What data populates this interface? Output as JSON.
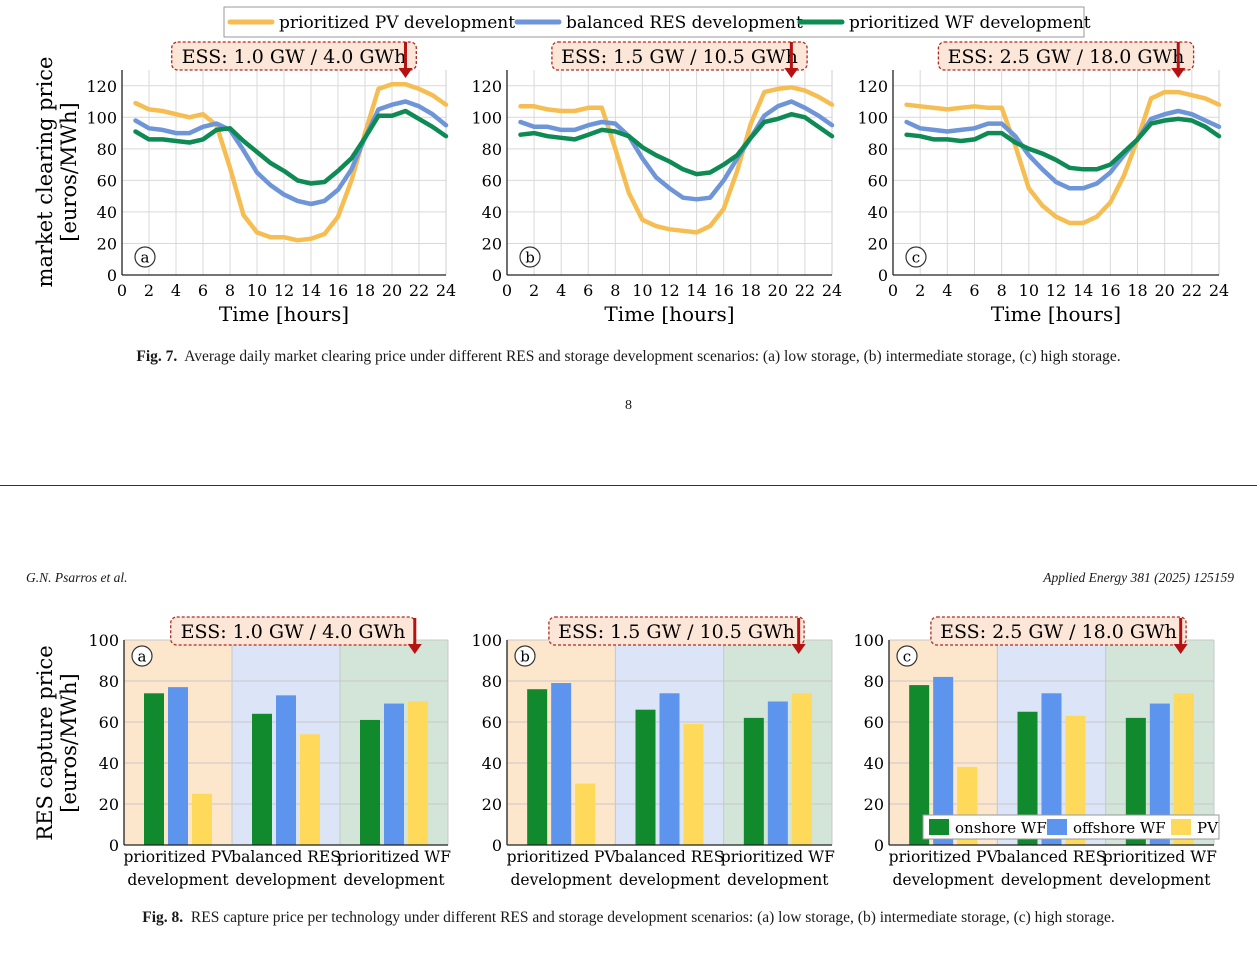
{
  "fig7": {
    "caption_label": "Fig. 7.",
    "caption_text": "Average daily market clearing price under different RES and storage development scenarios: (a) low storage, (b) intermediate storage, (c) high storage."
  },
  "page_number": "8",
  "running_header": {
    "authors": "G.N. Psarros et al.",
    "journal": "Applied Energy 381 (2025) 125159"
  },
  "fig8": {
    "caption_label": "Fig. 8.",
    "caption_text": "RES capture price per technology under different RES and storage development scenarios: (a) low storage, (b) intermediate storage, (c) high storage."
  },
  "colors": {
    "pv_line": "#F6BE52",
    "balanced_line": "#6D95D8",
    "wf_line": "#0E8A55",
    "onshore_bar": "#118A2E",
    "offshore_bar": "#5C94EE",
    "pv_bar": "#FFD95A",
    "bg_pv": "#FCE6CC",
    "bg_bal": "#DCE4F7",
    "bg_wf": "#D3E4D9",
    "ess_box": "#FCE6D8",
    "ess_border": "#B02A1E",
    "arrow": "#B51212"
  },
  "chart_data": [
    {
      "type": "line",
      "panel": "a",
      "ess_label": "ESS: 1.0 GW / 4.0 GWh",
      "xlabel": "Time [hours]",
      "ylabel": "market clearing price [euros/MWh]",
      "xlim": [
        0,
        24
      ],
      "ylim": [
        0,
        130
      ],
      "xticks": [
        0,
        2,
        4,
        6,
        8,
        10,
        12,
        14,
        16,
        18,
        20,
        22,
        24
      ],
      "yticks": [
        0,
        20,
        40,
        60,
        80,
        100,
        120
      ],
      "legend": [
        "prioritized PV development",
        "balanced RES development",
        "prioritized WF development"
      ],
      "x": [
        1,
        2,
        3,
        4,
        5,
        6,
        7,
        8,
        9,
        10,
        11,
        12,
        13,
        14,
        15,
        16,
        17,
        18,
        19,
        20,
        21,
        22,
        23,
        24
      ],
      "series": [
        {
          "name": "prioritized PV development",
          "values": [
            109,
            105,
            104,
            102,
            100,
            102,
            95,
            68,
            38,
            27,
            24,
            24,
            22,
            23,
            26,
            37,
            60,
            90,
            118,
            121,
            121,
            118,
            114,
            108
          ]
        },
        {
          "name": "balanced RES development",
          "values": [
            98,
            93,
            92,
            90,
            90,
            94,
            96,
            92,
            79,
            65,
            57,
            51,
            47,
            45,
            47,
            54,
            67,
            87,
            105,
            108,
            110,
            107,
            102,
            95
          ]
        },
        {
          "name": "prioritized WF development",
          "values": [
            91,
            86,
            86,
            85,
            84,
            86,
            92,
            93,
            85,
            78,
            71,
            66,
            60,
            58,
            59,
            66,
            74,
            87,
            101,
            101,
            104,
            99,
            94,
            88
          ]
        }
      ]
    },
    {
      "type": "line",
      "panel": "b",
      "ess_label": "ESS: 1.5 GW / 10.5 GWh",
      "xlabel": "Time [hours]",
      "xlim": [
        0,
        24
      ],
      "ylim": [
        0,
        130
      ],
      "xticks": [
        0,
        2,
        4,
        6,
        8,
        10,
        12,
        14,
        16,
        18,
        20,
        22,
        24
      ],
      "yticks": [
        0,
        20,
        40,
        60,
        80,
        100,
        120
      ],
      "x": [
        1,
        2,
        3,
        4,
        5,
        6,
        7,
        8,
        9,
        10,
        11,
        12,
        13,
        14,
        15,
        16,
        17,
        18,
        19,
        20,
        21,
        22,
        23,
        24
      ],
      "series": [
        {
          "name": "prioritized PV development",
          "values": [
            107,
            107,
            105,
            104,
            104,
            106,
            106,
            80,
            52,
            35,
            31,
            29,
            28,
            27,
            31,
            42,
            66,
            96,
            116,
            118,
            119,
            117,
            113,
            108
          ]
        },
        {
          "name": "balanced RES development",
          "values": [
            97,
            94,
            94,
            92,
            92,
            95,
            97,
            96,
            88,
            74,
            62,
            55,
            49,
            48,
            49,
            60,
            74,
            87,
            101,
            107,
            110,
            106,
            101,
            95
          ]
        },
        {
          "name": "prioritized WF development",
          "values": [
            89,
            90,
            88,
            87,
            86,
            89,
            92,
            91,
            88,
            81,
            76,
            72,
            67,
            64,
            65,
            70,
            76,
            87,
            97,
            99,
            102,
            100,
            94,
            88
          ]
        }
      ]
    },
    {
      "type": "line",
      "panel": "c",
      "ess_label": "ESS: 2.5 GW / 18.0 GWh",
      "xlabel": "Time [hours]",
      "xlim": [
        0,
        24
      ],
      "ylim": [
        0,
        130
      ],
      "xticks": [
        0,
        2,
        4,
        6,
        8,
        10,
        12,
        14,
        16,
        18,
        20,
        22,
        24
      ],
      "yticks": [
        0,
        20,
        40,
        60,
        80,
        100,
        120
      ],
      "x": [
        1,
        2,
        3,
        4,
        5,
        6,
        7,
        8,
        9,
        10,
        11,
        12,
        13,
        14,
        15,
        16,
        17,
        18,
        19,
        20,
        21,
        22,
        23,
        24
      ],
      "series": [
        {
          "name": "prioritized PV development",
          "values": [
            108,
            107,
            106,
            105,
            106,
            107,
            106,
            106,
            82,
            55,
            44,
            37,
            33,
            33,
            37,
            46,
            63,
            86,
            112,
            116,
            116,
            114,
            112,
            108
          ]
        },
        {
          "name": "balanced RES development",
          "values": [
            97,
            93,
            92,
            91,
            92,
            93,
            96,
            96,
            88,
            76,
            67,
            59,
            55,
            55,
            58,
            65,
            76,
            86,
            99,
            102,
            104,
            102,
            98,
            94
          ]
        },
        {
          "name": "prioritized WF development",
          "values": [
            89,
            88,
            86,
            86,
            85,
            86,
            90,
            90,
            84,
            80,
            77,
            73,
            68,
            67,
            67,
            70,
            78,
            86,
            96,
            98,
            99,
            98,
            94,
            88
          ]
        }
      ]
    },
    {
      "type": "bar",
      "panel": "a",
      "ess_label": "ESS: 1.0 GW / 4.0 GWh",
      "ylabel": "RES capture price [euros/MWh]",
      "ylim": [
        0,
        100
      ],
      "yticks": [
        0,
        20,
        40,
        60,
        80,
        100
      ],
      "categories": [
        "prioritized PV development",
        "balanced RES development",
        "prioritized WF development"
      ],
      "category_lines": [
        [
          "prioritized PV",
          "development"
        ],
        [
          "balanced RES",
          "development"
        ],
        [
          "prioritized WF",
          "development"
        ]
      ],
      "series": [
        {
          "name": "onshore WF",
          "values": [
            74,
            64,
            61
          ]
        },
        {
          "name": "offshore WF",
          "values": [
            77,
            73,
            69
          ]
        },
        {
          "name": "PV",
          "values": [
            25,
            54,
            70
          ]
        }
      ]
    },
    {
      "type": "bar",
      "panel": "b",
      "ess_label": "ESS: 1.5 GW / 10.5 GWh",
      "ylim": [
        0,
        100
      ],
      "yticks": [
        0,
        20,
        40,
        60,
        80,
        100
      ],
      "categories": [
        "prioritized PV development",
        "balanced RES development",
        "prioritized WF development"
      ],
      "category_lines": [
        [
          "prioritized PV",
          "development"
        ],
        [
          "balanced RES",
          "development"
        ],
        [
          "prioritized WF",
          "development"
        ]
      ],
      "series": [
        {
          "name": "onshore WF",
          "values": [
            76,
            66,
            62
          ]
        },
        {
          "name": "offshore WF",
          "values": [
            79,
            74,
            70
          ]
        },
        {
          "name": "PV",
          "values": [
            30,
            59,
            74
          ]
        }
      ]
    },
    {
      "type": "bar",
      "panel": "c",
      "ess_label": "ESS: 2.5 GW / 18.0 GWh",
      "ylim": [
        0,
        100
      ],
      "yticks": [
        0,
        20,
        40,
        60,
        80,
        100
      ],
      "legend": [
        "onshore WF",
        "offshore WF",
        "PV"
      ],
      "categories": [
        "prioritized PV development",
        "balanced RES development",
        "prioritized WF development"
      ],
      "category_lines": [
        [
          "prioritized PV",
          "development"
        ],
        [
          "balanced RES",
          "development"
        ],
        [
          "prioritized WF",
          "development"
        ]
      ],
      "series": [
        {
          "name": "onshore WF",
          "values": [
            78,
            65,
            62
          ]
        },
        {
          "name": "offshore WF",
          "values": [
            82,
            74,
            69
          ]
        },
        {
          "name": "PV",
          "values": [
            38,
            63,
            74
          ]
        }
      ]
    }
  ]
}
